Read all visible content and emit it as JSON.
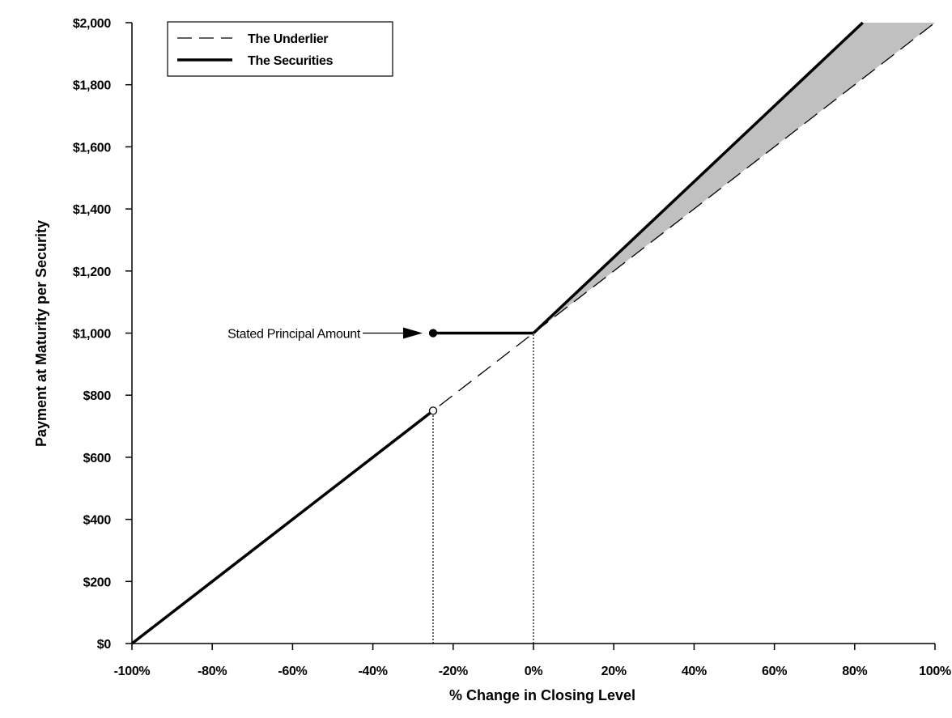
{
  "chart_data": {
    "type": "line",
    "title": "",
    "xlabel": "% Change in Closing Level",
    "ylabel": "Payment at Maturity per Security",
    "xlim": [
      -100,
      100
    ],
    "ylim": [
      0,
      2000
    ],
    "x_ticks": [
      -100,
      -80,
      -60,
      -40,
      -20,
      0,
      20,
      40,
      60,
      80,
      100
    ],
    "x_tick_labels": [
      "-100%",
      "-80%",
      "-60%",
      "-40%",
      "-20%",
      "0%",
      "20%",
      "40%",
      "60%",
      "80%",
      "100%"
    ],
    "y_ticks": [
      0,
      200,
      400,
      600,
      800,
      1000,
      1200,
      1400,
      1600,
      1800,
      2000
    ],
    "y_tick_labels": [
      "$0",
      "$200",
      "$400",
      "$600",
      "$800",
      "$1,000",
      "$1,200",
      "$1,400",
      "$1,600",
      "$1,800",
      "$2,000"
    ],
    "grid": false,
    "legend_position": "top-left",
    "series": [
      {
        "name": "The Underlier",
        "style": "dashed",
        "color": "#000000",
        "points": [
          [
            -100,
            0
          ],
          [
            100,
            2000
          ]
        ]
      },
      {
        "name": "The Securities",
        "style": "solid",
        "color": "#000000",
        "segments": [
          [
            [
              -100,
              0
            ],
            [
              -25,
              750
            ]
          ],
          [
            [
              -25,
              1000
            ],
            [
              0,
              1000
            ]
          ],
          [
            [
              0,
              1000
            ],
            [
              82,
              2000
            ]
          ]
        ]
      }
    ],
    "shaded_region": {
      "color": "#c0c0c0",
      "points": [
        [
          0,
          1000
        ],
        [
          82,
          2000
        ],
        [
          100,
          2000
        ]
      ]
    },
    "markers": [
      {
        "x": -25,
        "y": 1000,
        "fill": "filled"
      },
      {
        "x": -25,
        "y": 750,
        "fill": "open"
      }
    ],
    "reference_lines": [
      {
        "x": -25,
        "y_from": 0,
        "y_to": 750
      },
      {
        "x": 0,
        "y_from": 0,
        "y_to": 1000
      }
    ],
    "annotations": [
      {
        "text": "Stated Principal Amount",
        "x": -25,
        "y": 1000
      }
    ]
  }
}
